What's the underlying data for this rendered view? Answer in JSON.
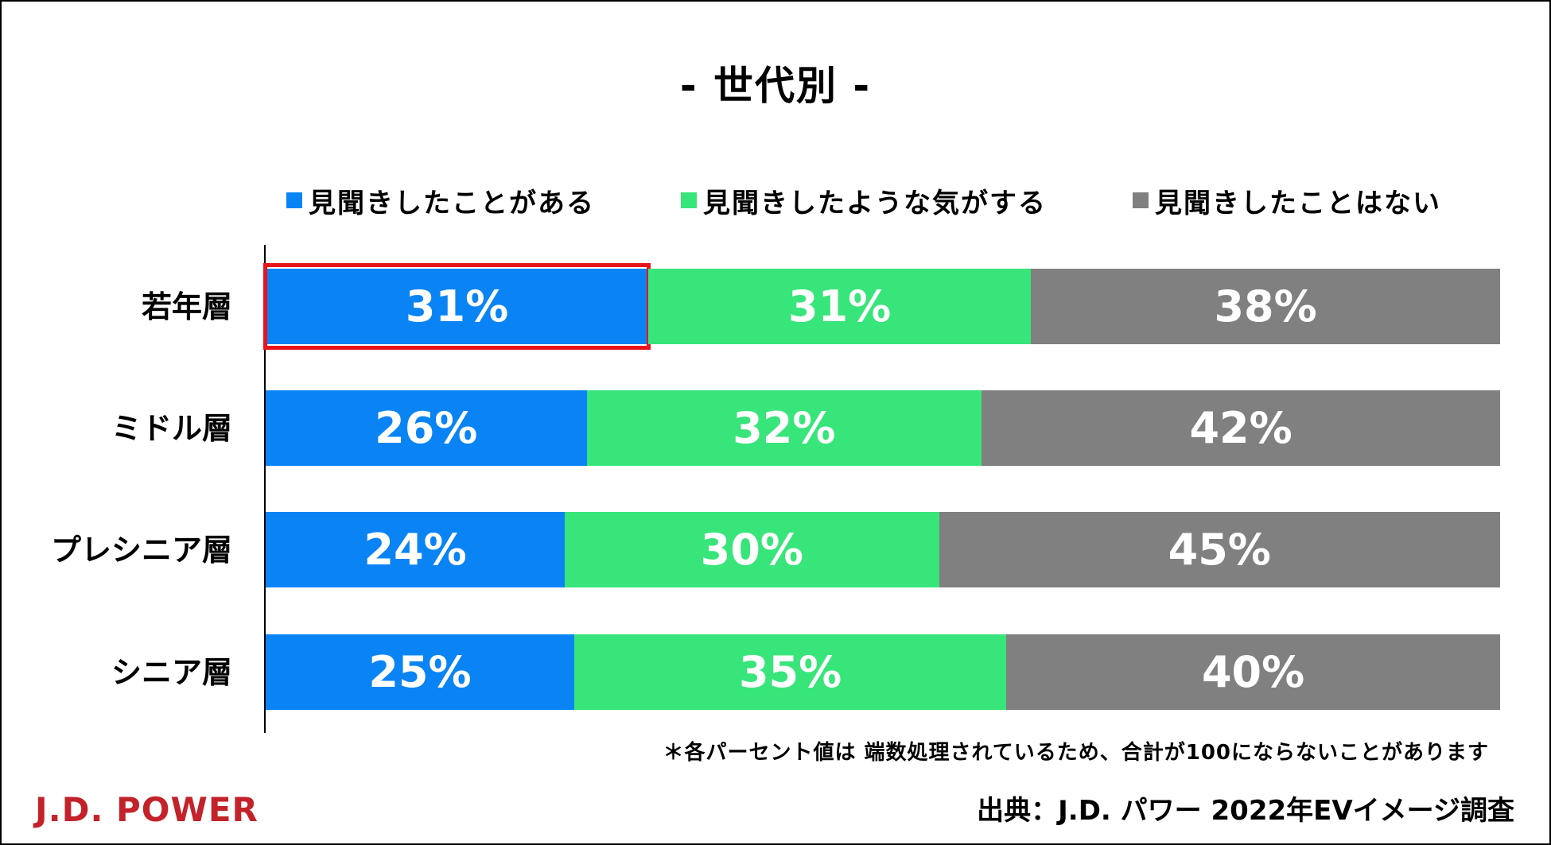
{
  "chart_data": {
    "type": "bar",
    "orientation": "horizontal",
    "stacked": true,
    "title": "- 世代別 -",
    "categories": [
      "若年層",
      "ミドル層",
      "プレシニア層",
      "シニア層"
    ],
    "series": [
      {
        "name": "見聞きしたことがある",
        "color": "#0a84f5",
        "values": [
          31,
          26,
          24,
          25
        ],
        "labels": [
          "31%",
          "26%",
          "24%",
          "25%"
        ]
      },
      {
        "name": "見聞きしたような気がする",
        "color": "#38e57a",
        "values": [
          31,
          32,
          30,
          35
        ],
        "labels": [
          "31%",
          "32%",
          "30%",
          "35%"
        ]
      },
      {
        "name": "見聞きしたことはない",
        "color": "#808080",
        "values": [
          38,
          42,
          45,
          40
        ],
        "labels": [
          "38%",
          "42%",
          "45%",
          "40%"
        ]
      }
    ],
    "xlim": [
      0,
      100
    ],
    "highlight": {
      "category_index": 0,
      "series_index": 0,
      "color": "#e8141c"
    },
    "legend": "top"
  },
  "footer": {
    "note": "＊各パーセント値は 端数処理されているため、合計が100にならないことがあります",
    "brand": "J.D. POWER",
    "source": "出典：J.D. パワー 2022年EVイメージ調査"
  }
}
